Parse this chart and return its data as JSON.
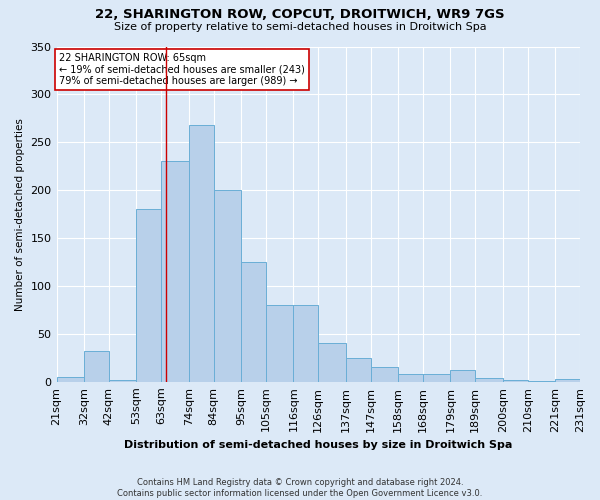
{
  "title1": "22, SHARINGTON ROW, COPCUT, DROITWICH, WR9 7GS",
  "title2": "Size of property relative to semi-detached houses in Droitwich Spa",
  "xlabel": "Distribution of semi-detached houses by size in Droitwich Spa",
  "ylabel": "Number of semi-detached properties",
  "footer1": "Contains HM Land Registry data © Crown copyright and database right 2024.",
  "footer2": "Contains public sector information licensed under the Open Government Licence v3.0.",
  "annotation_line1": "22 SHARINGTON ROW: 65sqm",
  "annotation_line2": "← 19% of semi-detached houses are smaller (243)",
  "annotation_line3": "79% of semi-detached houses are larger (989) →",
  "property_size": 65,
  "bar_left_edges": [
    21,
    32,
    42,
    53,
    63,
    74,
    84,
    95,
    105,
    116,
    126,
    137,
    147,
    158,
    168,
    179,
    189,
    200,
    210,
    221
  ],
  "bar_widths": [
    11,
    10,
    11,
    10,
    11,
    10,
    11,
    10,
    11,
    10,
    11,
    10,
    11,
    10,
    11,
    10,
    11,
    10,
    11,
    10
  ],
  "bar_heights": [
    5,
    32,
    2,
    180,
    230,
    268,
    200,
    125,
    80,
    80,
    40,
    25,
    15,
    8,
    8,
    12,
    4,
    2,
    1,
    3
  ],
  "tick_labels": [
    "21sqm",
    "32sqm",
    "42sqm",
    "53sqm",
    "63sqm",
    "74sqm",
    "84sqm",
    "95sqm",
    "105sqm",
    "116sqm",
    "126sqm",
    "137sqm",
    "147sqm",
    "158sqm",
    "168sqm",
    "179sqm",
    "189sqm",
    "200sqm",
    "210sqm",
    "221sqm",
    "231sqm"
  ],
  "bar_color": "#b8d0ea",
  "bar_edge_color": "#6aaed6",
  "marker_color": "#cc0000",
  "ylim": [
    0,
    350
  ],
  "yticks": [
    0,
    50,
    100,
    150,
    200,
    250,
    300,
    350
  ],
  "background_color": "#dce9f7",
  "grid_color": "#ffffff",
  "annotation_box_color": "#ffffff",
  "annotation_box_edge": "#cc0000"
}
